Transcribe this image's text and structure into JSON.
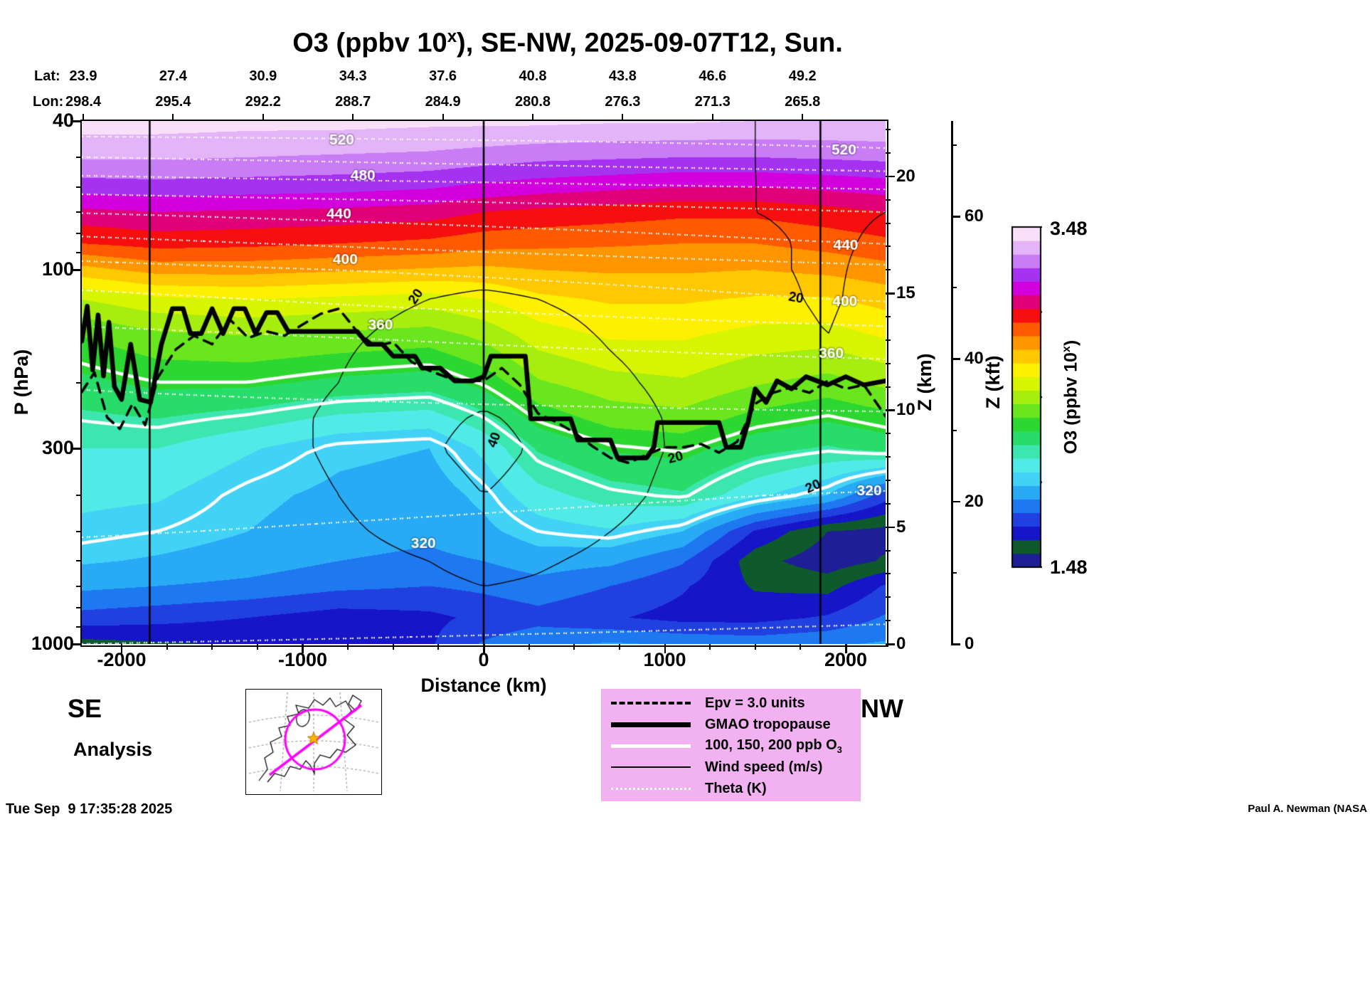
{
  "title": {
    "pre": "O3 (ppbv 10",
    "sup": "x",
    "post": "), SE-NW, 2025-09-07T12, Sun."
  },
  "header": {
    "lat_label": "Lat:",
    "lon_label": "Lon:",
    "lat_values": [
      "23.9",
      "27.4",
      "30.9",
      "34.3",
      "37.6",
      "40.8",
      "43.8",
      "46.6",
      "49.2"
    ],
    "lon_values": [
      "298.4",
      "295.4",
      "292.2",
      "288.7",
      "284.9",
      "280.8",
      "276.3",
      "271.3",
      "265.8"
    ]
  },
  "axes": {
    "y_left": {
      "label": "P (hPa)",
      "ticks": [
        40,
        100,
        300,
        1000
      ],
      "minor": [
        50,
        60,
        70,
        80,
        90,
        200,
        400,
        500,
        600,
        700,
        800,
        900
      ],
      "scale": "log",
      "range": [
        40,
        1000
      ]
    },
    "x_bottom": {
      "label": "Distance (km)",
      "ticks": [
        -2000,
        -1000,
        0,
        1000,
        2000
      ],
      "range": [
        -2220,
        2220
      ]
    },
    "y_right_zkm": {
      "label": "Z (km)",
      "ticks": [
        0,
        5,
        10,
        15,
        20
      ]
    },
    "y_right_zkft": {
      "label": "Z (kft)",
      "ticks": [
        0,
        20,
        40,
        60
      ]
    },
    "corner_left": "SE",
    "corner_right": "NW"
  },
  "colorbar": {
    "max_label": "3.48",
    "min_label": "1.48",
    "vmin": 1.48,
    "vmax": 3.48,
    "label": {
      "pre": "O3 (ppbv 10",
      "sup": "x",
      "post": ")"
    },
    "palette": [
      "#1e1e96",
      "#0f5a2d",
      "#1616c8",
      "#2041e0",
      "#1e78f0",
      "#28aaf5",
      "#41d2f5",
      "#50ebe6",
      "#3ce6af",
      "#28dc69",
      "#2dd731",
      "#69e61e",
      "#a5ee0f",
      "#d7f500",
      "#fff000",
      "#ffc800",
      "#ff9600",
      "#ff5a00",
      "#f50f0f",
      "#e00078",
      "#d200dc",
      "#a532f0",
      "#c87df5",
      "#e3b4f8",
      "#f8e1f8"
    ]
  },
  "legend": {
    "items": [
      {
        "style": "dashed-black",
        "label": "Epv = 3.0 units"
      },
      {
        "style": "thick-black",
        "label": "GMAO tropopause"
      },
      {
        "style": "thick-white",
        "label": "100, 150, 200 ppb O",
        "sub": "3"
      },
      {
        "style": "thin-black",
        "label": "Wind speed (m/s)"
      },
      {
        "style": "dotted-white",
        "label": "Theta (K)"
      }
    ]
  },
  "footer": {
    "analysis": "Analysis",
    "timestamp": "Tue Sep  9 17:35:28 2025",
    "credit": "Paul A. Newman (NASA"
  },
  "chart_data": {
    "type": "heatmap",
    "description": "Filled contour vertical cross-section of log10 ozone (ppbv) along SE-NW transect, pressure 40-1000 hPa (log axis), distance -2220..2220 km",
    "x_km": [
      -2220,
      -1800,
      -1300,
      -800,
      -300,
      0,
      300,
      700,
      1100,
      1500,
      1900,
      2220
    ],
    "pressure_hpa": [
      40,
      50,
      60,
      70,
      85,
      100,
      120,
      150,
      200,
      250,
      300,
      400,
      500,
      600,
      700,
      850,
      1000
    ],
    "o3_log10_ppbv_grid": [
      [
        3.44,
        3.44,
        3.43,
        3.43,
        3.42,
        3.42,
        3.42,
        3.41,
        3.41,
        3.4,
        3.4,
        3.4
      ],
      [
        3.33,
        3.33,
        3.32,
        3.31,
        3.3,
        3.28,
        3.26,
        3.25,
        3.24,
        3.24,
        3.25,
        3.26
      ],
      [
        3.2,
        3.21,
        3.2,
        3.19,
        3.17,
        3.14,
        3.12,
        3.1,
        3.08,
        3.08,
        3.1,
        3.12
      ],
      [
        3.06,
        3.08,
        3.07,
        3.06,
        3.04,
        3.0,
        2.98,
        2.96,
        2.94,
        2.94,
        2.97,
        3.0
      ],
      [
        2.92,
        2.95,
        2.94,
        2.92,
        2.9,
        2.87,
        2.86,
        2.85,
        2.84,
        2.84,
        2.87,
        2.9
      ],
      [
        2.73,
        2.79,
        2.79,
        2.77,
        2.75,
        2.74,
        2.76,
        2.77,
        2.77,
        2.76,
        2.78,
        2.81
      ],
      [
        2.52,
        2.58,
        2.6,
        2.58,
        2.56,
        2.6,
        2.66,
        2.69,
        2.69,
        2.67,
        2.67,
        2.71
      ],
      [
        2.36,
        2.42,
        2.44,
        2.42,
        2.4,
        2.46,
        2.56,
        2.61,
        2.61,
        2.57,
        2.56,
        2.61
      ],
      [
        2.26,
        2.3,
        2.3,
        2.26,
        2.24,
        2.31,
        2.43,
        2.49,
        2.51,
        2.45,
        2.41,
        2.46
      ],
      [
        2.18,
        2.2,
        2.16,
        2.1,
        2.08,
        2.17,
        2.31,
        2.39,
        2.41,
        2.33,
        2.29,
        2.33
      ],
      [
        2.12,
        2.12,
        2.05,
        1.98,
        1.96,
        2.06,
        2.21,
        2.29,
        2.31,
        2.23,
        2.19,
        2.23
      ],
      [
        2.06,
        2.05,
        1.98,
        1.94,
        1.92,
        1.98,
        2.09,
        2.16,
        2.19,
        2.06,
        1.96,
        1.76
      ],
      [
        2.02,
        2.0,
        1.96,
        1.92,
        1.9,
        1.94,
        2.0,
        2.03,
        1.96,
        1.71,
        1.56,
        1.53
      ],
      [
        1.97,
        1.95,
        1.92,
        1.88,
        1.86,
        1.88,
        1.92,
        1.9,
        1.81,
        1.59,
        1.51,
        1.57
      ],
      [
        1.9,
        1.88,
        1.86,
        1.82,
        1.8,
        1.82,
        1.85,
        1.8,
        1.73,
        1.63,
        1.61,
        1.73
      ],
      [
        1.77,
        1.75,
        1.72,
        1.68,
        1.7,
        1.74,
        1.77,
        1.73,
        1.69,
        1.69,
        1.73,
        1.81
      ],
      [
        1.61,
        1.63,
        1.65,
        1.67,
        1.71,
        1.81,
        1.86,
        1.89,
        1.87,
        1.85,
        1.87,
        1.89
      ]
    ],
    "theta_k_profiles": {
      "se": [
        535,
        500,
        468,
        441,
        414,
        393,
        374,
        355,
        341,
        336,
        332,
        326,
        321,
        316,
        311,
        305,
        300
      ],
      "nw": [
        532,
        516,
        482,
        460,
        441,
        415,
        402,
        372,
        348,
        338,
        330,
        319,
        314,
        310,
        306,
        301,
        297
      ]
    },
    "wind_ms_grid": [
      [
        18,
        15,
        12,
        14,
        15,
        14,
        15,
        16,
        18,
        20,
        22,
        22
      ],
      [
        16,
        14,
        12,
        14,
        15,
        14,
        15,
        16,
        18,
        20,
        22,
        22
      ],
      [
        14,
        13,
        12,
        13,
        15,
        15,
        15,
        16,
        18,
        20,
        21,
        21
      ],
      [
        12,
        12,
        12,
        13,
        15,
        16,
        16,
        16,
        18,
        20,
        21,
        20
      ],
      [
        10,
        11,
        12,
        14,
        16,
        17,
        17,
        16,
        17,
        19,
        21,
        19
      ],
      [
        9,
        10,
        12,
        15,
        18,
        18,
        18,
        16,
        17,
        19,
        21,
        18
      ],
      [
        8,
        10,
        13,
        16,
        20,
        21,
        20,
        17,
        16,
        18,
        21,
        17
      ],
      [
        8,
        10,
        14,
        18,
        24,
        26,
        24,
        19,
        16,
        17,
        20,
        16
      ],
      [
        8,
        11,
        15,
        20,
        30,
        34,
        30,
        22,
        17,
        16,
        19,
        15
      ],
      [
        8,
        11,
        15,
        22,
        36,
        42,
        36,
        25,
        18,
        15,
        18,
        14
      ],
      [
        8,
        11,
        15,
        22,
        38,
        46,
        38,
        26,
        18,
        14,
        17,
        13
      ],
      [
        7,
        10,
        14,
        20,
        32,
        40,
        34,
        24,
        16,
        12,
        15,
        12
      ],
      [
        6,
        9,
        12,
        17,
        26,
        32,
        28,
        20,
        14,
        10,
        13,
        10
      ],
      [
        6,
        8,
        10,
        14,
        20,
        26,
        22,
        16,
        12,
        9,
        11,
        9
      ],
      [
        5,
        7,
        9,
        12,
        16,
        20,
        18,
        13,
        10,
        8,
        9,
        8
      ],
      [
        4,
        5,
        7,
        9,
        12,
        14,
        12,
        10,
        8,
        6,
        7,
        6
      ],
      [
        3,
        4,
        5,
        6,
        8,
        9,
        8,
        7,
        5,
        4,
        5,
        4
      ]
    ],
    "contours": {
      "o3_ppb": [
        100,
        150,
        200
      ],
      "o3_levels_log10": [
        2.0,
        2.1761,
        2.301
      ],
      "theta_k_min": 300,
      "theta_k_max": 520,
      "theta_k_step": 20,
      "wind_ms": [
        20,
        40
      ]
    },
    "tropopause_km_hpa": [
      [
        -2220,
        155
      ],
      [
        -2190,
        125
      ],
      [
        -2160,
        185
      ],
      [
        -2130,
        132
      ],
      [
        -2100,
        192
      ],
      [
        -2070,
        138
      ],
      [
        -2040,
        205
      ],
      [
        -2000,
        222
      ],
      [
        -1950,
        158
      ],
      [
        -1900,
        222
      ],
      [
        -1840,
        226
      ],
      [
        -1780,
        158
      ],
      [
        -1720,
        127
      ],
      [
        -1660,
        127
      ],
      [
        -1620,
        148
      ],
      [
        -1560,
        148
      ],
      [
        -1500,
        127
      ],
      [
        -1440,
        148
      ],
      [
        -1380,
        127
      ],
      [
        -1320,
        127
      ],
      [
        -1260,
        148
      ],
      [
        -1200,
        130
      ],
      [
        -1140,
        130
      ],
      [
        -1080,
        146
      ],
      [
        -700,
        146
      ],
      [
        -640,
        158
      ],
      [
        -560,
        158
      ],
      [
        -500,
        170
      ],
      [
        -380,
        170
      ],
      [
        -340,
        183
      ],
      [
        -240,
        183
      ],
      [
        -160,
        198
      ],
      [
        -60,
        198
      ],
      [
        0,
        193
      ],
      [
        40,
        170
      ],
      [
        230,
        170
      ],
      [
        260,
        250
      ],
      [
        480,
        250
      ],
      [
        520,
        285
      ],
      [
        700,
        285
      ],
      [
        740,
        318
      ],
      [
        900,
        318
      ],
      [
        940,
        298
      ],
      [
        960,
        256
      ],
      [
        1300,
        256
      ],
      [
        1340,
        298
      ],
      [
        1420,
        298
      ],
      [
        1460,
        256
      ],
      [
        1500,
        208
      ],
      [
        1560,
        226
      ],
      [
        1620,
        198
      ],
      [
        1700,
        208
      ],
      [
        1780,
        193
      ],
      [
        1900,
        203
      ],
      [
        2000,
        193
      ],
      [
        2100,
        203
      ],
      [
        2220,
        198
      ]
    ],
    "epv3_km_hpa": [
      [
        -2220,
        212
      ],
      [
        -2150,
        188
      ],
      [
        -2080,
        248
      ],
      [
        -2010,
        266
      ],
      [
        -1940,
        228
      ],
      [
        -1870,
        260
      ],
      [
        -1800,
        194
      ],
      [
        -1700,
        163
      ],
      [
        -1600,
        150
      ],
      [
        -1500,
        158
      ],
      [
        -1400,
        136
      ],
      [
        -1300,
        152
      ],
      [
        -1200,
        146
      ],
      [
        -1100,
        150
      ],
      [
        -1000,
        140
      ],
      [
        -900,
        131
      ],
      [
        -800,
        127
      ],
      [
        -700,
        146
      ],
      [
        -600,
        160
      ],
      [
        -500,
        156
      ],
      [
        -400,
        176
      ],
      [
        -300,
        186
      ],
      [
        -200,
        194
      ],
      [
        -100,
        198
      ],
      [
        0,
        198
      ],
      [
        100,
        183
      ],
      [
        200,
        203
      ],
      [
        300,
        242
      ],
      [
        400,
        255
      ],
      [
        500,
        272
      ],
      [
        600,
        296
      ],
      [
        700,
        318
      ],
      [
        800,
        328
      ],
      [
        900,
        312
      ],
      [
        1000,
        298
      ],
      [
        1100,
        298
      ],
      [
        1200,
        292
      ],
      [
        1300,
        308
      ],
      [
        1400,
        288
      ],
      [
        1500,
        228
      ],
      [
        1600,
        213
      ],
      [
        1700,
        206
      ],
      [
        1800,
        213
      ],
      [
        1900,
        198
      ],
      [
        2000,
        208
      ],
      [
        2100,
        203
      ],
      [
        2220,
        246
      ]
    ],
    "vertical_lines_km": [
      -1845,
      0,
      1860
    ],
    "theta_labels": [
      {
        "t": "520",
        "km": -784,
        "p": 45
      },
      {
        "t": "480",
        "km": -667,
        "p": 56
      },
      {
        "t": "440",
        "km": -800,
        "p": 71
      },
      {
        "t": "400",
        "km": -765,
        "p": 94
      },
      {
        "t": "360",
        "km": -570,
        "p": 141
      },
      {
        "t": "320",
        "km": -333,
        "p": 540
      },
      {
        "t": "520",
        "km": 1990,
        "p": 48
      },
      {
        "t": "440",
        "km": 2000,
        "p": 86
      },
      {
        "t": "400",
        "km": 1995,
        "p": 122
      },
      {
        "t": "360",
        "km": 1920,
        "p": 168
      },
      {
        "t": "320",
        "km": 2130,
        "p": 390
      }
    ],
    "wind_labels": [
      {
        "t": "20",
        "km": -373,
        "p": 118,
        "rot": -55
      },
      {
        "t": "40",
        "km": 60,
        "p": 285,
        "rot": -70
      },
      {
        "t": "20",
        "km": 1060,
        "p": 318,
        "rot": -15
      },
      {
        "t": "20",
        "km": 1820,
        "p": 380,
        "rot": -25
      },
      {
        "t": "20",
        "km": 1725,
        "p": 119,
        "rot": 10
      }
    ]
  }
}
